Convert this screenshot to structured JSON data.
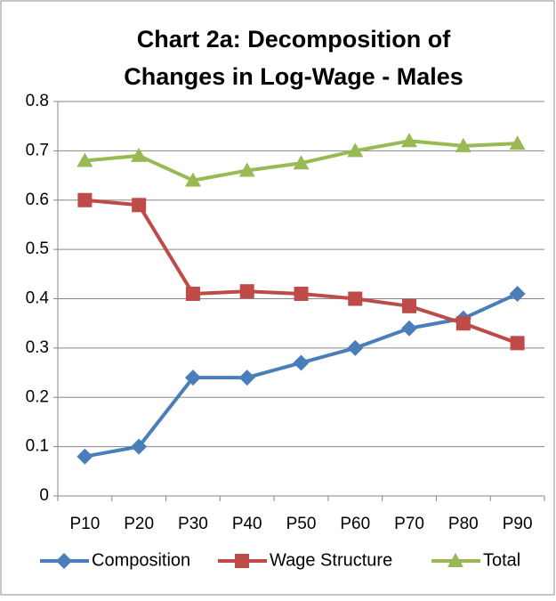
{
  "chart_data": {
    "type": "line",
    "title": [
      "Chart 2a: Decomposition of",
      "Changes in Log-Wage - Males"
    ],
    "categories": [
      "P10",
      "P20",
      "P30",
      "P40",
      "P50",
      "P60",
      "P70",
      "P80",
      "P90"
    ],
    "series": [
      {
        "name": "Composition",
        "color": "#4a7ebb",
        "marker": "diamond",
        "values": [
          0.08,
          0.1,
          0.24,
          0.24,
          0.27,
          0.3,
          0.34,
          0.36,
          0.41
        ]
      },
      {
        "name": "Wage Structure",
        "color": "#be4b48",
        "marker": "square",
        "values": [
          0.6,
          0.59,
          0.41,
          0.415,
          0.41,
          0.4,
          0.385,
          0.35,
          0.31
        ]
      },
      {
        "name": "Total",
        "color": "#98b954",
        "marker": "triangle",
        "values": [
          0.68,
          0.69,
          0.64,
          0.66,
          0.675,
          0.7,
          0.72,
          0.71,
          0.715
        ]
      }
    ],
    "ylim": [
      0,
      0.8
    ],
    "yticks": [
      0,
      0.1,
      0.2,
      0.3,
      0.4,
      0.5,
      0.6,
      0.7,
      0.8
    ],
    "grid": true,
    "legend": "bottom"
  }
}
